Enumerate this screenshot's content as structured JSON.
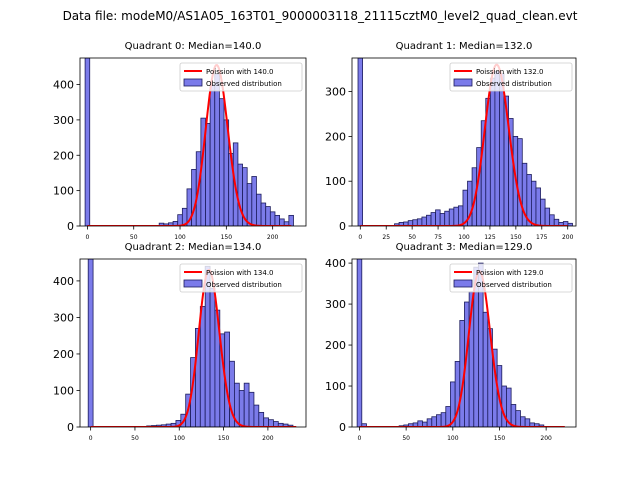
{
  "figure": {
    "suptitle": "Data file: modeM0/AS1A05_163T01_9000003118_21115cztM0_level2_quad_clean.evt"
  },
  "colors": {
    "hist_fill": "#7b7bea",
    "hist_edge": "#1c1c5c",
    "poisson_line": "#ff0000"
  },
  "chart_data": [
    {
      "type": "bar",
      "title": "Quadrant 0: Median=140.0",
      "legend": {
        "location": "top-right",
        "line_label": "Poission with 140.0",
        "bar_label": "Observed distribution"
      },
      "xlim": [
        -8,
        236
      ],
      "ylim": [
        0,
        475
      ],
      "xticks": [
        0,
        50,
        100,
        150,
        200
      ],
      "yticks": [
        0,
        100,
        200,
        300,
        400
      ],
      "bin_width": 5,
      "bins": [
        {
          "x": 0,
          "y": 475
        },
        {
          "x": 80,
          "y": 8
        },
        {
          "x": 85,
          "y": 6
        },
        {
          "x": 90,
          "y": 9
        },
        {
          "x": 95,
          "y": 13
        },
        {
          "x": 100,
          "y": 32
        },
        {
          "x": 105,
          "y": 50
        },
        {
          "x": 110,
          "y": 105
        },
        {
          "x": 115,
          "y": 160
        },
        {
          "x": 120,
          "y": 210
        },
        {
          "x": 125,
          "y": 305
        },
        {
          "x": 130,
          "y": 290
        },
        {
          "x": 135,
          "y": 400
        },
        {
          "x": 140,
          "y": 430
        },
        {
          "x": 145,
          "y": 360
        },
        {
          "x": 150,
          "y": 300
        },
        {
          "x": 155,
          "y": 205
        },
        {
          "x": 160,
          "y": 235
        },
        {
          "x": 165,
          "y": 175
        },
        {
          "x": 170,
          "y": 165
        },
        {
          "x": 175,
          "y": 120
        },
        {
          "x": 180,
          "y": 140
        },
        {
          "x": 185,
          "y": 90
        },
        {
          "x": 190,
          "y": 65
        },
        {
          "x": 195,
          "y": 55
        },
        {
          "x": 200,
          "y": 40
        },
        {
          "x": 205,
          "y": 30
        },
        {
          "x": 210,
          "y": 20
        },
        {
          "x": 215,
          "y": 12
        },
        {
          "x": 220,
          "y": 30
        }
      ],
      "poisson": {
        "mean": 140.0,
        "x_range": [
          0,
          220
        ],
        "peak": 455
      }
    },
    {
      "type": "bar",
      "title": "Quadrant 1: Median=132.0",
      "legend": {
        "location": "top-right",
        "line_label": "Poission with 132.0",
        "bar_label": "Observed distribution"
      },
      "xlim": [
        -8,
        208
      ],
      "ylim": [
        0,
        375
      ],
      "xticks": [
        0,
        25,
        50,
        75,
        100,
        125,
        150,
        175,
        200
      ],
      "yticks": [
        0,
        100,
        200,
        300
      ],
      "bin_width": 4.4,
      "bins": [
        {
          "x": 0,
          "y": 375
        },
        {
          "x": 35.2,
          "y": 5
        },
        {
          "x": 39.6,
          "y": 8
        },
        {
          "x": 44,
          "y": 9
        },
        {
          "x": 48.4,
          "y": 12
        },
        {
          "x": 52.8,
          "y": 14
        },
        {
          "x": 57.2,
          "y": 16
        },
        {
          "x": 61.6,
          "y": 20
        },
        {
          "x": 66,
          "y": 24
        },
        {
          "x": 70.4,
          "y": 30
        },
        {
          "x": 74.8,
          "y": 36
        },
        {
          "x": 79.2,
          "y": 28
        },
        {
          "x": 83.6,
          "y": 33
        },
        {
          "x": 88,
          "y": 38
        },
        {
          "x": 92.4,
          "y": 42
        },
        {
          "x": 96.8,
          "y": 45
        },
        {
          "x": 101.2,
          "y": 80
        },
        {
          "x": 105.6,
          "y": 100
        },
        {
          "x": 110,
          "y": 130
        },
        {
          "x": 114.4,
          "y": 175
        },
        {
          "x": 118.8,
          "y": 235
        },
        {
          "x": 123.2,
          "y": 285
        },
        {
          "x": 127.6,
          "y": 330
        },
        {
          "x": 132,
          "y": 345
        },
        {
          "x": 136.4,
          "y": 340
        },
        {
          "x": 140.8,
          "y": 290
        },
        {
          "x": 145.2,
          "y": 240
        },
        {
          "x": 149.6,
          "y": 200
        },
        {
          "x": 154,
          "y": 195
        },
        {
          "x": 158.4,
          "y": 140
        },
        {
          "x": 162.8,
          "y": 115
        },
        {
          "x": 167.2,
          "y": 100
        },
        {
          "x": 171.6,
          "y": 85
        },
        {
          "x": 176,
          "y": 60
        },
        {
          "x": 180.4,
          "y": 40
        },
        {
          "x": 184.8,
          "y": 25
        },
        {
          "x": 189.2,
          "y": 15
        },
        {
          "x": 193.6,
          "y": 8
        },
        {
          "x": 198,
          "y": 10
        },
        {
          "x": 202.4,
          "y": 6
        }
      ],
      "poisson": {
        "mean": 132.0,
        "x_range": [
          0,
          200
        ],
        "peak": 360
      }
    },
    {
      "type": "bar",
      "title": "Quadrant 2: Median=134.0",
      "legend": {
        "location": "top-right",
        "line_label": "Poission with 134.0",
        "bar_label": "Observed distribution"
      },
      "xlim": [
        -12,
        243
      ],
      "ylim": [
        0,
        460
      ],
      "xticks": [
        0,
        50,
        100,
        150,
        200
      ],
      "yticks": [
        0,
        100,
        200,
        300,
        400
      ],
      "bin_width": 5.5,
      "bins": [
        {
          "x": 0,
          "y": 460
        },
        {
          "x": 66,
          "y": 3
        },
        {
          "x": 71.5,
          "y": 4
        },
        {
          "x": 77,
          "y": 5
        },
        {
          "x": 82.5,
          "y": 6
        },
        {
          "x": 88,
          "y": 8
        },
        {
          "x": 93.5,
          "y": 10
        },
        {
          "x": 99,
          "y": 18
        },
        {
          "x": 104.5,
          "y": 35
        },
        {
          "x": 110,
          "y": 90
        },
        {
          "x": 115.5,
          "y": 190
        },
        {
          "x": 121,
          "y": 270
        },
        {
          "x": 126.5,
          "y": 330
        },
        {
          "x": 132,
          "y": 440
        },
        {
          "x": 137.5,
          "y": 380
        },
        {
          "x": 143,
          "y": 320
        },
        {
          "x": 148.5,
          "y": 255
        },
        {
          "x": 154,
          "y": 260
        },
        {
          "x": 159.5,
          "y": 180
        },
        {
          "x": 165,
          "y": 120
        },
        {
          "x": 170.5,
          "y": 100
        },
        {
          "x": 176,
          "y": 120
        },
        {
          "x": 181.5,
          "y": 95
        },
        {
          "x": 187,
          "y": 60
        },
        {
          "x": 192.5,
          "y": 40
        },
        {
          "x": 198,
          "y": 25
        },
        {
          "x": 203.5,
          "y": 20
        },
        {
          "x": 209,
          "y": 15
        },
        {
          "x": 214.5,
          "y": 10
        },
        {
          "x": 220,
          "y": 8
        },
        {
          "x": 225.5,
          "y": 5
        }
      ],
      "poisson": {
        "mean": 134.0,
        "x_range": [
          0,
          232
        ],
        "peak": 430
      }
    },
    {
      "type": "bar",
      "title": "Quadrant 3: Median=129.0",
      "legend": {
        "location": "top-right",
        "line_label": "Poission with 129.0",
        "bar_label": "Observed distribution"
      },
      "xlim": [
        -8,
        232
      ],
      "ylim": [
        0,
        410
      ],
      "xticks": [
        0,
        50,
        100,
        150,
        200
      ],
      "yticks": [
        0,
        100,
        200,
        300,
        400
      ],
      "bin_width": 5,
      "bins": [
        {
          "x": 0,
          "y": 410
        },
        {
          "x": 5,
          "y": 8
        },
        {
          "x": 45,
          "y": 3
        },
        {
          "x": 50,
          "y": 5
        },
        {
          "x": 55,
          "y": 8
        },
        {
          "x": 60,
          "y": 10
        },
        {
          "x": 65,
          "y": 15
        },
        {
          "x": 70,
          "y": 12
        },
        {
          "x": 75,
          "y": 20
        },
        {
          "x": 80,
          "y": 25
        },
        {
          "x": 85,
          "y": 30
        },
        {
          "x": 90,
          "y": 35
        },
        {
          "x": 95,
          "y": 50
        },
        {
          "x": 100,
          "y": 110
        },
        {
          "x": 105,
          "y": 160
        },
        {
          "x": 110,
          "y": 260
        },
        {
          "x": 115,
          "y": 305
        },
        {
          "x": 120,
          "y": 330
        },
        {
          "x": 125,
          "y": 390
        },
        {
          "x": 130,
          "y": 400
        },
        {
          "x": 135,
          "y": 280
        },
        {
          "x": 140,
          "y": 240
        },
        {
          "x": 145,
          "y": 190
        },
        {
          "x": 150,
          "y": 150
        },
        {
          "x": 155,
          "y": 100
        },
        {
          "x": 160,
          "y": 95
        },
        {
          "x": 165,
          "y": 55
        },
        {
          "x": 170,
          "y": 40
        },
        {
          "x": 175,
          "y": 25
        },
        {
          "x": 180,
          "y": 20
        },
        {
          "x": 185,
          "y": 10
        },
        {
          "x": 190,
          "y": 8
        },
        {
          "x": 195,
          "y": 5
        }
      ],
      "poisson": {
        "mean": 129.0,
        "x_range": [
          0,
          220
        ],
        "peak": 380
      }
    }
  ]
}
